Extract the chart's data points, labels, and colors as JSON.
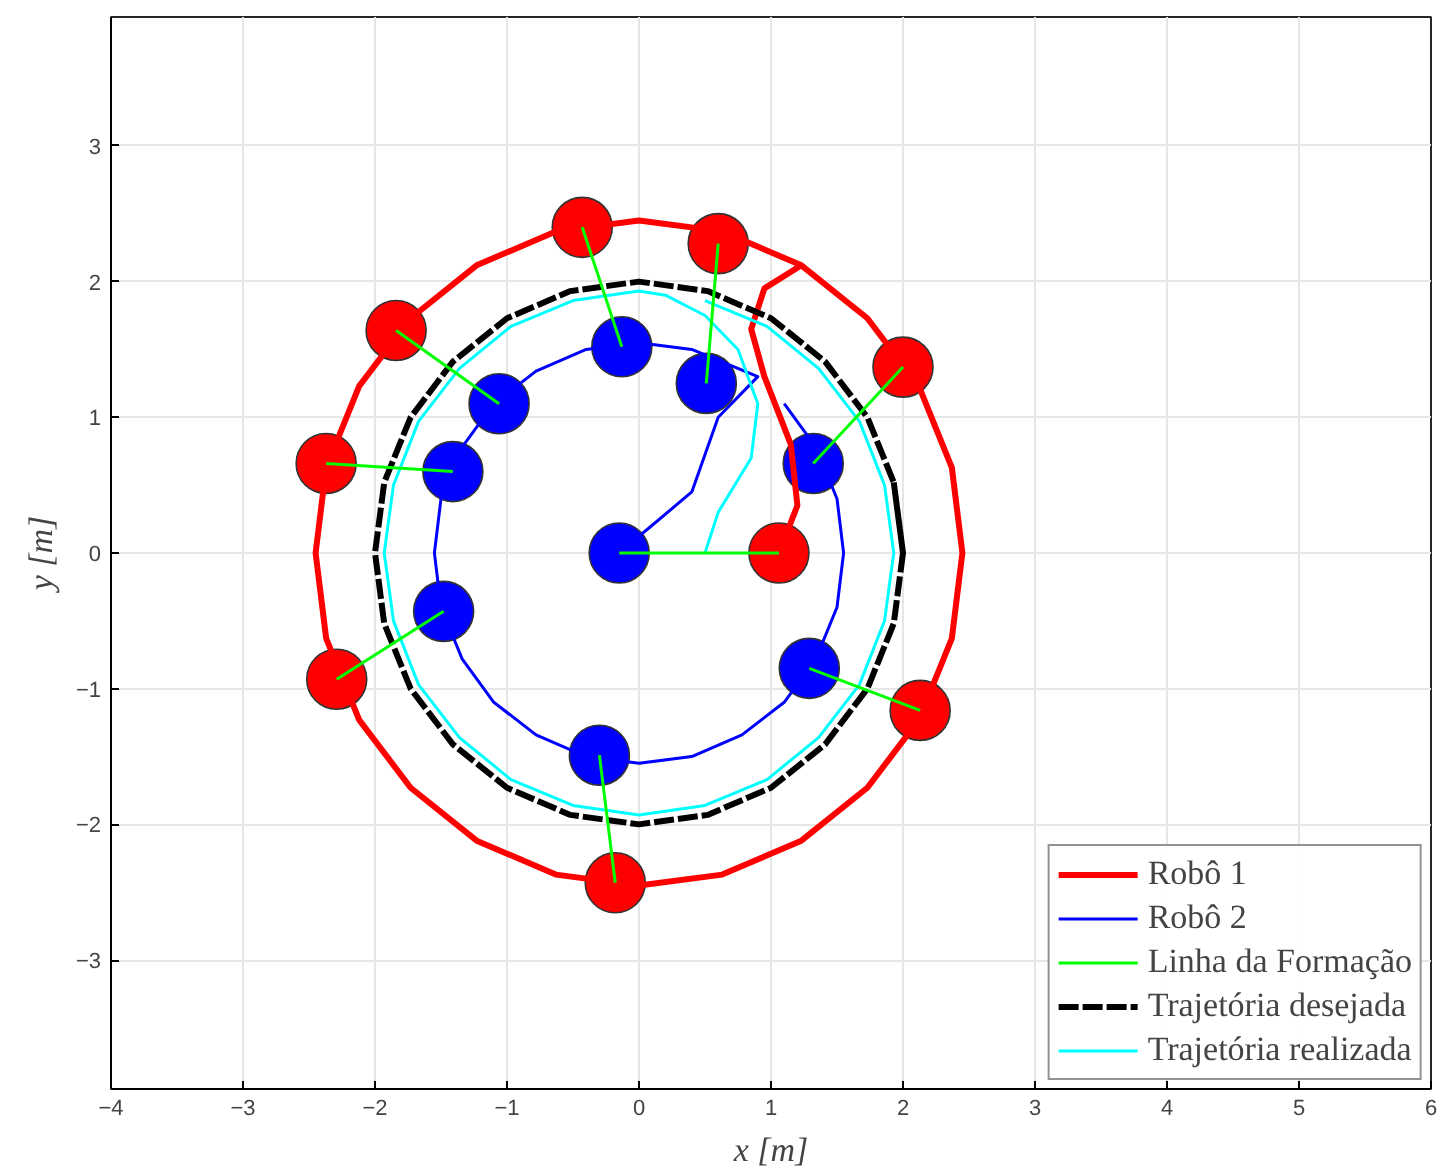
{
  "chart_data": {
    "type": "line",
    "xlabel": "x [m]",
    "ylabel": "y [m]",
    "xlim": [
      -4,
      6
    ],
    "ylim": [
      -3.95,
      3.95
    ],
    "xticks": [
      -4,
      -3,
      -2,
      -1,
      0,
      1,
      2,
      3,
      4,
      5,
      6
    ],
    "yticks": [
      -3,
      -2,
      -1,
      0,
      1,
      2,
      3
    ],
    "grid": true,
    "legend": "bottom right",
    "marker": "none",
    "series": [
      {
        "type": "scatter",
        "marker": "circle",
        "color": "#ff0000",
        "x": [
          1.06,
          0.6,
          -0.43,
          -1.84,
          -2.37,
          -2.29,
          -0.18,
          2.13,
          2.0
        ],
        "values": [
          0,
          2.28,
          2.4,
          1.64,
          0.66,
          -0.93,
          -2.43,
          -1.16,
          1.37
        ]
      },
      {
        "type": "scatter",
        "marker": "circle",
        "color": "#0000ff",
        "x": [
          -0.15,
          0.51,
          -0.13,
          -1.06,
          -1.41,
          -1.48,
          -0.3,
          1.29,
          1.32
        ],
        "values": [
          0,
          1.25,
          1.52,
          1.1,
          0.6,
          -0.43,
          -1.49,
          -0.85,
          0.66
        ]
      },
      {
        "name": "Robô 1",
        "color": "#ff0000",
        "line_style": "solid",
        "x": [
          1.06,
          1.2,
          1.15,
          0.95,
          0.85,
          0.95,
          1.23,
          0.63,
          0,
          -0.63,
          -1.23,
          -1.73,
          -2.12,
          -2.37,
          -2.45,
          -2.37,
          -2.12,
          -1.73,
          -1.23,
          -0.63,
          0,
          0.63,
          1.23,
          1.73,
          2.12,
          2.37,
          2.45,
          2.37,
          2.12,
          1.73,
          1.23,
          0.63
        ],
        "values": [
          0,
          0.35,
          0.8,
          1.3,
          1.65,
          1.95,
          2.12,
          2.37,
          2.45,
          2.37,
          2.12,
          1.73,
          1.23,
          0.63,
          0,
          -0.63,
          -1.23,
          -1.73,
          -2.12,
          -2.37,
          -2.45,
          -2.37,
          -2.12,
          -1.73,
          -1.23,
          -0.63,
          0,
          0.63,
          1.23,
          1.73,
          2.12,
          2.37
        ]
      },
      {
        "name": "Robô 2",
        "color": "#0000ff",
        "line_style": "solid",
        "x": [
          -0.15,
          0.4,
          0.6,
          0.9,
          0.4,
          0,
          -0.4,
          -0.78,
          -1.1,
          -1.34,
          -1.5,
          -1.55,
          -1.5,
          -1.34,
          -1.1,
          -0.78,
          -0.4,
          0,
          0.4,
          0.78,
          1.1,
          1.34,
          1.5,
          1.55,
          1.5,
          1.34,
          1.1
        ],
        "values": [
          0,
          0.45,
          1.0,
          1.3,
          1.5,
          1.55,
          1.5,
          1.34,
          1.1,
          0.78,
          0.4,
          0,
          -0.4,
          -0.78,
          -1.1,
          -1.34,
          -1.5,
          -1.55,
          -1.5,
          -1.34,
          -1.1,
          -0.78,
          -0.4,
          0,
          0.4,
          0.78,
          1.1
        ]
      },
      {
        "name": "Linha da Formação",
        "color": "#00ff00",
        "line_style": "solid",
        "x": [
          1.06,
          -0.15,
          null,
          0.6,
          0.51,
          null,
          -0.43,
          -0.13,
          null,
          -1.84,
          -1.06,
          null,
          -2.37,
          -1.41,
          null,
          -2.29,
          -1.48,
          null,
          -0.18,
          -0.3,
          null,
          2.13,
          1.29,
          null,
          2.0,
          1.32
        ],
        "values": [
          0,
          0,
          null,
          2.28,
          1.25,
          null,
          2.4,
          1.52,
          null,
          1.64,
          1.1,
          null,
          0.66,
          0.6,
          null,
          -0.93,
          -0.43,
          null,
          -2.43,
          -1.49,
          null,
          -1.16,
          -0.85,
          null,
          1.37,
          0.66
        ]
      },
      {
        "name": "Trajetória desejada",
        "color": "#000000",
        "line_style": "dashed",
        "x": [
          2,
          1.93,
          1.73,
          1.41,
          1,
          0.52,
          0,
          -0.52,
          -1,
          -1.41,
          -1.73,
          -1.93,
          -2,
          -1.93,
          -1.73,
          -1.41,
          -1,
          -0.52,
          0,
          0.52,
          1,
          1.41,
          1.73,
          1.93,
          2,
          1.93
        ],
        "values": [
          0,
          0.52,
          1,
          1.41,
          1.73,
          1.93,
          2,
          1.93,
          1.73,
          1.41,
          1,
          0.52,
          0,
          -0.52,
          -1,
          -1.41,
          -1.73,
          -1.93,
          -2,
          -1.93,
          -1.73,
          -1.41,
          -1,
          -0.52,
          0,
          0.52
        ]
      },
      {
        "name": "Trajetória realizada",
        "color": "#00ffff",
        "line_style": "solid",
        "x": [
          0.5,
          0.6,
          0.85,
          0.9,
          0.75,
          0.5,
          0.2,
          0,
          -0.5,
          -0.97,
          -1.36,
          -1.67,
          -1.86,
          -1.93,
          -1.86,
          -1.67,
          -1.36,
          -0.97,
          -0.5,
          0,
          0.5,
          0.97,
          1.36,
          1.67,
          1.86,
          1.93,
          1.86,
          1.67,
          1.36,
          0.97,
          0.5
        ],
        "values": [
          0,
          0.3,
          0.7,
          1.1,
          1.5,
          1.75,
          1.9,
          1.93,
          1.86,
          1.67,
          1.36,
          0.97,
          0.5,
          0,
          -0.5,
          -0.97,
          -1.36,
          -1.67,
          -1.86,
          -1.93,
          -1.86,
          -1.67,
          -1.36,
          -0.97,
          -0.5,
          0,
          0.5,
          0.97,
          1.36,
          1.67,
          1.86
        ]
      }
    ]
  }
}
